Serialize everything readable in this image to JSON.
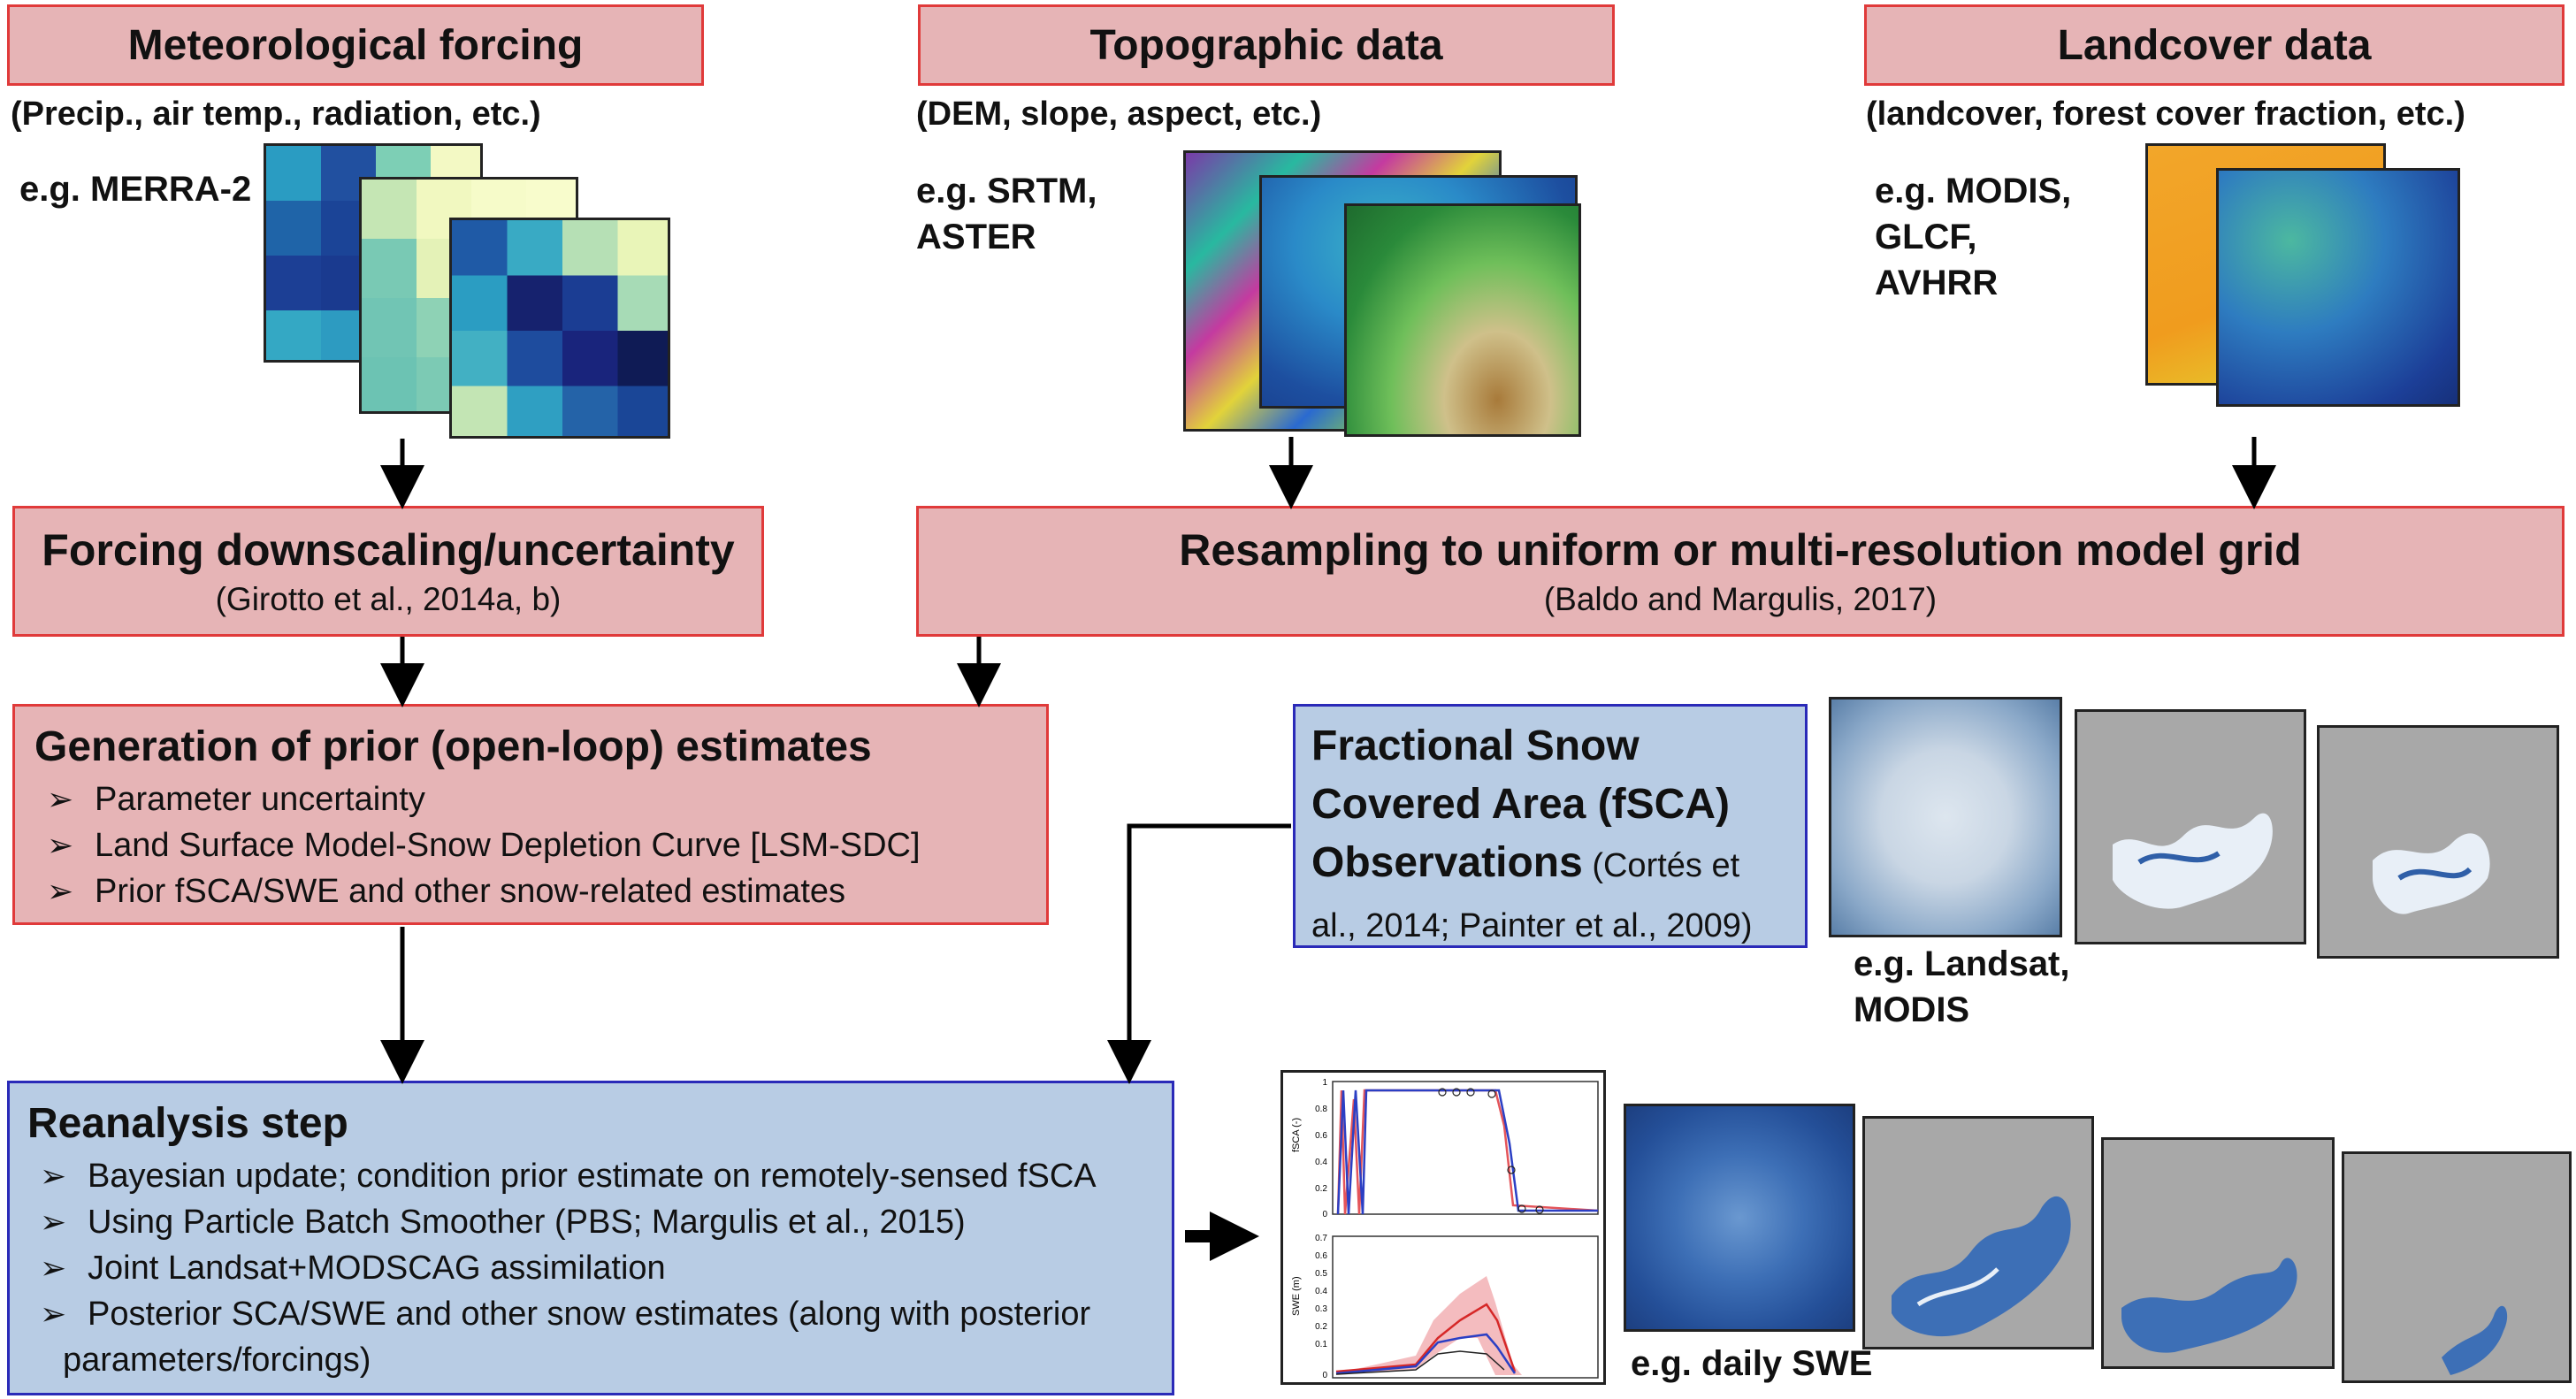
{
  "inputs": {
    "met": {
      "title": "Meteorological forcing",
      "sub": "(Precip., air temp., radiation, etc.)",
      "eg": "e.g. MERRA-2"
    },
    "topo": {
      "title": "Topographic data",
      "sub": "(DEM, slope, aspect, etc.)",
      "eg_lines": [
        "e.g. SRTM,",
        "ASTER"
      ]
    },
    "land": {
      "title": "Landcover data",
      "sub": "(landcover, forest cover fraction, etc.)",
      "eg_lines": [
        "e.g. MODIS,",
        "GLCF,",
        "AVHRR"
      ]
    }
  },
  "downscaling": {
    "title": "Forcing downscaling/uncertainty",
    "cite": "(Girotto et al., 2014a, b)"
  },
  "resampling": {
    "title": "Resampling to uniform or multi-resolution model grid",
    "cite": "(Baldo and Margulis, 2017)"
  },
  "prior": {
    "title": "Generation of prior (open-loop) estimates",
    "bullets": [
      "Parameter uncertainty",
      "Land Surface Model-Snow Depletion Curve [LSM-SDC]",
      "Prior fSCA/SWE and other snow-related estimates"
    ]
  },
  "fsca": {
    "lines": [
      "Fractional Snow",
      "Covered Area (fSCA)"
    ],
    "obs": "Observations",
    "cite1": " (Cortés et",
    "cite2": "al., 2014; Painter et al., 2009)",
    "eg_lines": [
      "e.g. Landsat,",
      "MODIS"
    ]
  },
  "reanalysis": {
    "title": "Reanalysis step",
    "bullets": [
      "Bayesian update; condition prior estimate on remotely-sensed fSCA",
      "Using Particle Batch Smoother (PBS; Margulis et al., 2015)",
      "Joint Landsat+MODSCAG assimilation",
      "Posterior SCA/SWE and other snow estimates (along with posterior",
      "parameters/forcings)"
    ]
  },
  "swe_label": "e.g. daily SWE",
  "bullet_marker": "➢",
  "plot": {
    "top_ylabel": "fSCA (-)",
    "bottom_ylabel": "SWE (m)",
    "top_ticks": [
      "1",
      "0.8",
      "0.6",
      "0.4",
      "0.2",
      "0"
    ],
    "bottom_ticks": [
      "0.7",
      "0.6",
      "0.5",
      "0.4",
      "0.3",
      "0.2",
      "0.1",
      "0"
    ]
  },
  "colors": {
    "pink_fill": "#e6b4b6",
    "pink_border": "#e03a3a",
    "blue_fill": "#b8cce4",
    "blue_border": "#2a2ab8"
  }
}
